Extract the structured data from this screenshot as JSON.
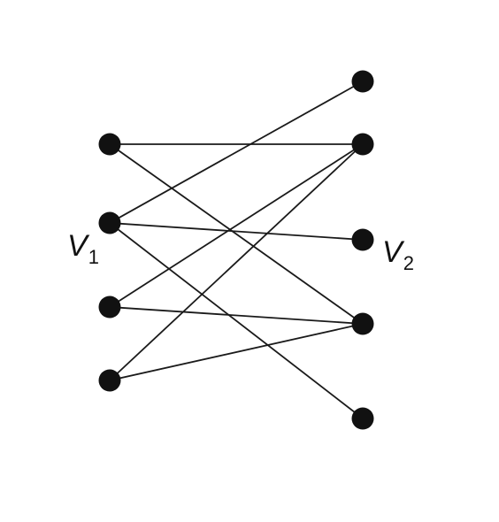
{
  "labels": {
    "left": {
      "main": "V",
      "sub": "1"
    },
    "right": {
      "main": "V",
      "sub": "2"
    }
  },
  "graph": {
    "left_nodes": [
      "a1",
      "a2",
      "a3",
      "a4"
    ],
    "right_nodes": [
      "b1",
      "b2",
      "b3",
      "b4",
      "b5"
    ],
    "edges": [
      [
        "a1",
        "b2"
      ],
      [
        "a1",
        "b4"
      ],
      [
        "a2",
        "b1"
      ],
      [
        "a2",
        "b3"
      ],
      [
        "a2",
        "b5"
      ],
      [
        "a3",
        "b2"
      ],
      [
        "a3",
        "b4"
      ],
      [
        "a4",
        "b2"
      ],
      [
        "a4",
        "b4"
      ]
    ]
  },
  "colors": {
    "node": "#111111",
    "edge": "#1a1a1a",
    "background": "#ffffff"
  }
}
